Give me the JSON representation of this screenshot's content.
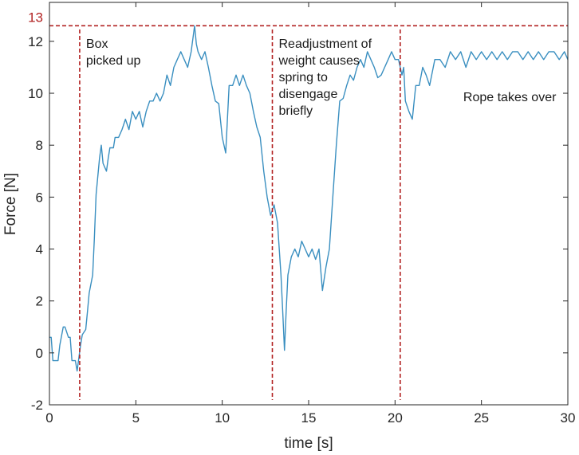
{
  "chart_data": {
    "type": "line",
    "xlabel": "time [s]",
    "ylabel": "Force [N]",
    "xlim": [
      0,
      30
    ],
    "ylim": [
      -2,
      13.5
    ],
    "x_ticks": [
      0,
      5,
      10,
      15,
      20,
      25,
      30
    ],
    "y_ticks": [
      -2,
      0,
      2,
      4,
      6,
      8,
      10,
      12
    ],
    "grid": false,
    "line_color": "#3a8fc0",
    "reference_color": "#b22222",
    "reference_line": {
      "y": 12.6,
      "label": "13"
    },
    "event_lines": [
      {
        "x": 1.75,
        "label_lines": [
          "Box",
          "picked up"
        ]
      },
      {
        "x": 12.9,
        "label_lines": [
          "Readjustment of",
          "weight causes",
          "spring to",
          "disengage",
          "briefly"
        ]
      },
      {
        "x": 20.3,
        "label_lines": []
      }
    ],
    "annotations": [
      {
        "x": 23.95,
        "y": 9.7,
        "text": "Rope takes over"
      }
    ],
    "series": [
      {
        "x": [
          0,
          0.1,
          0.2,
          0.5,
          0.6,
          0.8,
          0.9,
          1.1,
          1.2,
          1.3,
          1.5,
          1.6,
          1.8,
          1.9,
          2.1,
          2.2,
          2.3,
          2.5,
          2.6,
          2.7,
          2.9,
          3.0,
          3.1,
          3.3,
          3.4,
          3.5,
          3.7,
          3.8,
          4.0,
          4.2,
          4.4,
          4.6,
          4.8,
          5.0,
          5.2,
          5.4,
          5.6,
          5.8,
          6.0,
          6.2,
          6.4,
          6.6,
          6.8,
          7.0,
          7.2,
          7.4,
          7.6,
          7.8,
          8.0,
          8.2,
          8.4,
          8.5,
          8.6,
          8.8,
          9.0,
          9.2,
          9.4,
          9.6,
          9.8,
          10.0,
          10.2,
          10.4,
          10.6,
          10.8,
          11.0,
          11.2,
          11.4,
          11.6,
          11.8,
          12.0,
          12.2,
          12.4,
          12.6,
          12.8,
          13.0,
          13.2,
          13.4,
          13.5,
          13.6,
          13.7,
          13.8,
          14.0,
          14.2,
          14.4,
          14.6,
          14.8,
          15.0,
          15.2,
          15.4,
          15.6,
          15.8,
          16.0,
          16.2,
          16.4,
          16.6,
          16.8,
          17.0,
          17.2,
          17.4,
          17.6,
          17.8,
          18.0,
          18.2,
          18.4,
          18.6,
          18.8,
          19.0,
          19.2,
          19.4,
          19.6,
          19.8,
          20.0,
          20.2,
          20.4,
          20.5,
          20.6,
          20.8,
          21.0,
          21.2,
          21.4,
          21.6,
          21.8,
          22.0,
          22.3,
          22.6,
          22.9,
          23.2,
          23.5,
          23.8,
          24.1,
          24.4,
          24.7,
          25.0,
          25.3,
          25.6,
          25.9,
          26.2,
          26.5,
          26.8,
          27.1,
          27.4,
          27.7,
          28.0,
          28.3,
          28.6,
          28.9,
          29.2,
          29.5,
          29.8,
          30.0
        ],
        "y": [
          0.6,
          0.6,
          -0.3,
          -0.3,
          0.3,
          1.0,
          1.0,
          0.6,
          0.6,
          -0.3,
          -0.3,
          -0.7,
          0.3,
          0.7,
          0.9,
          1.6,
          2.3,
          3.0,
          4.4,
          6.1,
          7.5,
          8.0,
          7.3,
          7.0,
          7.5,
          7.9,
          7.9,
          8.3,
          8.3,
          8.6,
          9.0,
          8.6,
          9.3,
          9.0,
          9.3,
          8.7,
          9.3,
          9.7,
          9.7,
          10.0,
          9.7,
          10.0,
          10.7,
          10.3,
          11.0,
          11.3,
          11.6,
          11.3,
          11.0,
          11.6,
          12.6,
          11.9,
          11.6,
          11.3,
          11.6,
          11.0,
          10.3,
          9.7,
          9.6,
          8.3,
          7.7,
          10.3,
          10.3,
          10.7,
          10.3,
          10.7,
          10.3,
          10.0,
          9.3,
          8.7,
          8.3,
          7.0,
          6.0,
          5.3,
          5.7,
          5.0,
          3.0,
          1.6,
          0.1,
          1.6,
          3.0,
          3.7,
          4.0,
          3.7,
          4.3,
          4.0,
          3.7,
          4.0,
          3.6,
          4.0,
          2.4,
          3.3,
          4.0,
          6.0,
          8.0,
          9.7,
          9.8,
          10.3,
          10.7,
          10.5,
          11.0,
          11.3,
          11.0,
          11.6,
          11.3,
          11.0,
          10.6,
          10.7,
          11.0,
          11.3,
          11.6,
          11.3,
          11.3,
          10.7,
          11.0,
          9.7,
          9.3,
          9.0,
          10.3,
          10.3,
          11.0,
          10.7,
          10.3,
          11.3,
          11.3,
          11.0,
          11.6,
          11.3,
          11.6,
          11.0,
          11.6,
          11.3,
          11.6,
          11.3,
          11.6,
          11.3,
          11.6,
          11.3,
          11.6,
          11.6,
          11.3,
          11.6,
          11.3,
          11.6,
          11.3,
          11.6,
          11.6,
          11.3,
          11.6,
          11.3
        ]
      }
    ]
  }
}
